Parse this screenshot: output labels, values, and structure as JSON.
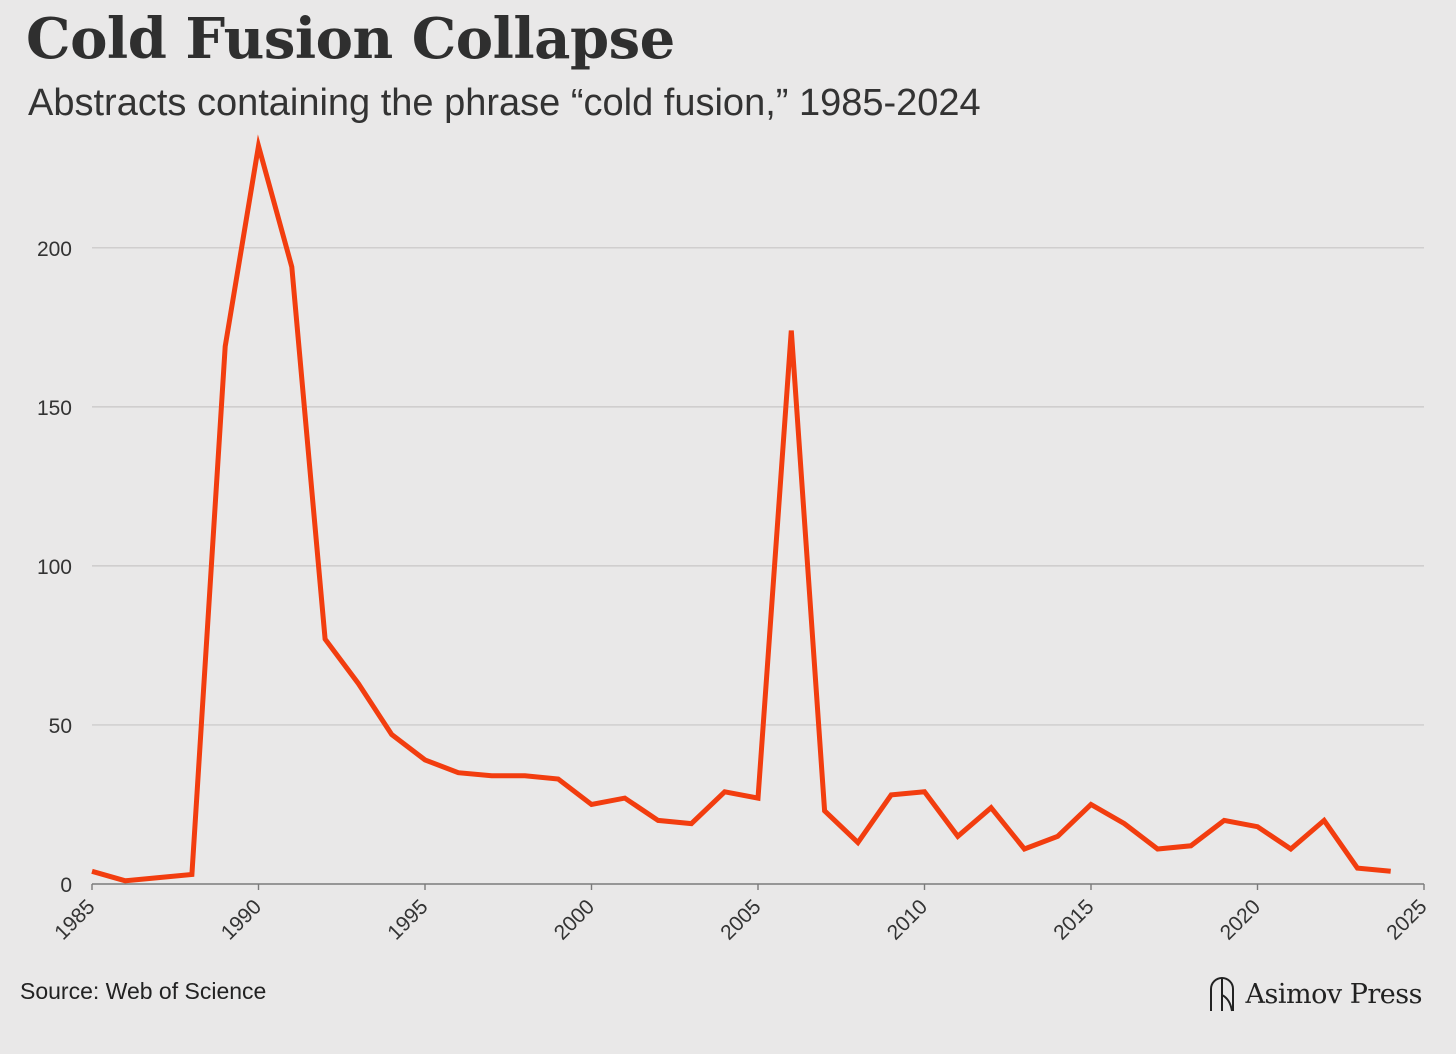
{
  "chart_data": {
    "type": "line",
    "title": "Cold Fusion Collapse",
    "subtitle": "Abstracts containing the phrase “cold fusion,” 1985-2024",
    "xlabel": "",
    "ylabel": "",
    "x": [
      1985,
      1986,
      1987,
      1988,
      1989,
      1990,
      1991,
      1992,
      1993,
      1994,
      1995,
      1996,
      1997,
      1998,
      1999,
      2000,
      2001,
      2002,
      2003,
      2004,
      2005,
      2006,
      2007,
      2008,
      2009,
      2010,
      2011,
      2012,
      2013,
      2014,
      2015,
      2016,
      2017,
      2018,
      2019,
      2020,
      2021,
      2022,
      2023,
      2024
    ],
    "series": [
      {
        "name": "cold fusion abstracts",
        "color": "#f23d0f",
        "values": [
          4,
          1,
          2,
          3,
          169,
          232,
          194,
          77,
          63,
          47,
          39,
          35,
          34,
          34,
          33,
          25,
          27,
          20,
          19,
          29,
          27,
          174,
          23,
          13,
          28,
          29,
          15,
          24,
          11,
          15,
          25,
          19,
          11,
          12,
          20,
          18,
          11,
          20,
          5,
          4
        ]
      }
    ],
    "xlim": [
      1985,
      2025
    ],
    "ylim": [
      0,
      232
    ],
    "x_ticks": [
      "1985",
      "1990",
      "1995",
      "2000",
      "2005",
      "2010",
      "2015",
      "2020",
      "2025"
    ],
    "y_ticks": [
      "0",
      "50",
      "100",
      "150",
      "200"
    ],
    "grid": true,
    "source": "Source: Web of Science"
  },
  "brand": {
    "name": "Asimov Press",
    "icon": "asimov-logo-icon"
  }
}
